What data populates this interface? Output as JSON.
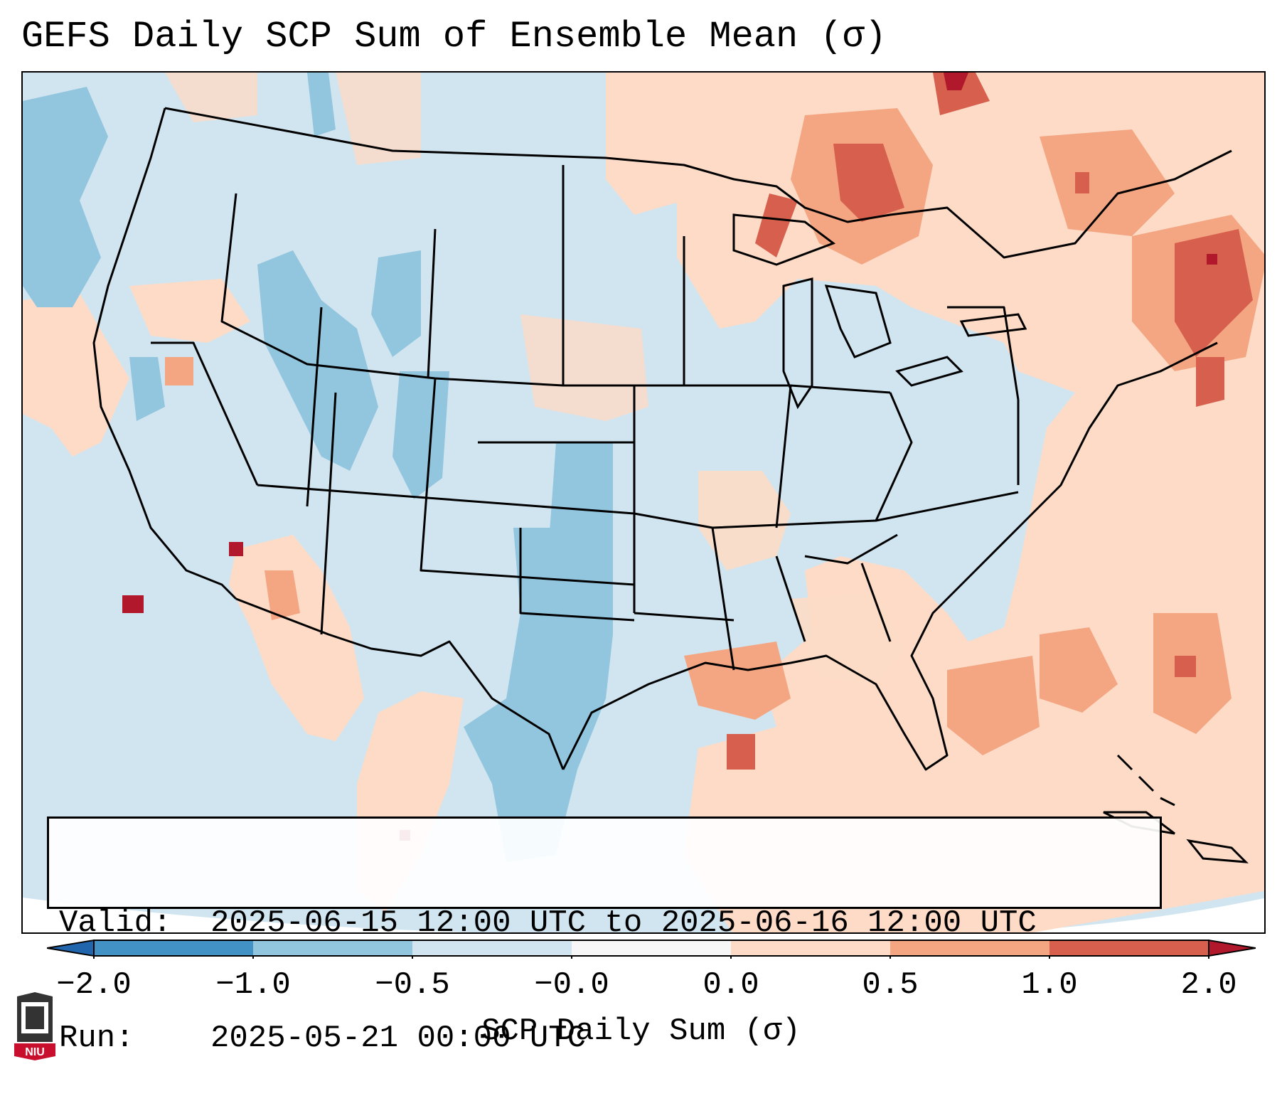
{
  "title": "GEFS Daily SCP Sum of Ensemble Mean (σ)",
  "info": {
    "valid_label": "Valid:",
    "valid_value": "2025-06-15 12:00 UTC to 2025-06-16 12:00 UTC",
    "run_label": "Run:",
    "run_value": "2025-05-21 00:00 UTC"
  },
  "colorbar": {
    "label": "SCP Daily Sum (σ)",
    "ticks": [
      "−2.0",
      "−1.0",
      "−0.5",
      "−0.0",
      "0.0",
      "0.5",
      "1.0",
      "2.0"
    ],
    "colors": [
      "#4292c6",
      "#92c5de",
      "#d1e5f0",
      "#f7f7f7",
      "#fddbc7",
      "#f4a582",
      "#d6604d"
    ],
    "under_color": "#2166ac",
    "over_color": "#b2182b"
  },
  "logo": {
    "text": "NIU",
    "color": "#c8102e"
  }
}
